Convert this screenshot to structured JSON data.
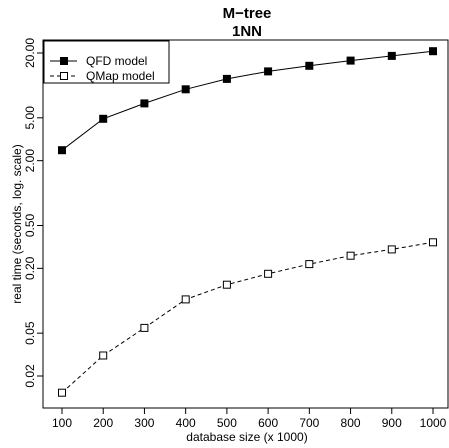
{
  "chart_data": {
    "type": "line",
    "title": "M−tree",
    "subtitle": "1NN",
    "xlabel": "database size (x 1000)",
    "ylabel": "real time (seconds, log. scale)",
    "y_scale": "log",
    "x": [
      100,
      200,
      300,
      400,
      500,
      600,
      700,
      800,
      900,
      1000
    ],
    "x_ticks": [
      "100",
      "200",
      "300",
      "400",
      "500",
      "600",
      "700",
      "800",
      "900",
      "1000"
    ],
    "y_ticks": [
      {
        "value": 0.02,
        "label": "0.02"
      },
      {
        "value": 0.05,
        "label": "0.05"
      },
      {
        "value": 0.2,
        "label": "0.20"
      },
      {
        "value": 0.5,
        "label": "0.50"
      },
      {
        "value": 2,
        "label": "2.00"
      },
      {
        "value": 5,
        "label": "5.00"
      },
      {
        "value": 20,
        "label": "20.00"
      }
    ],
    "xlim": [
      75,
      1025
    ],
    "ylim": [
      0.013,
      28
    ],
    "grid": false,
    "legend_position": "top-left",
    "series": [
      {
        "name": "QFD model",
        "line_style": "solid",
        "marker": "filled-square",
        "color": "#000000",
        "values": [
          2.5,
          4.9,
          6.8,
          9.2,
          11.5,
          13.5,
          15.2,
          17.0,
          18.8,
          20.8
        ]
      },
      {
        "name": "QMap model",
        "line_style": "dashed",
        "marker": "open-square",
        "color": "#000000",
        "values": [
          0.014,
          0.031,
          0.056,
          0.103,
          0.141,
          0.178,
          0.219,
          0.262,
          0.3,
          0.349
        ]
      }
    ]
  }
}
